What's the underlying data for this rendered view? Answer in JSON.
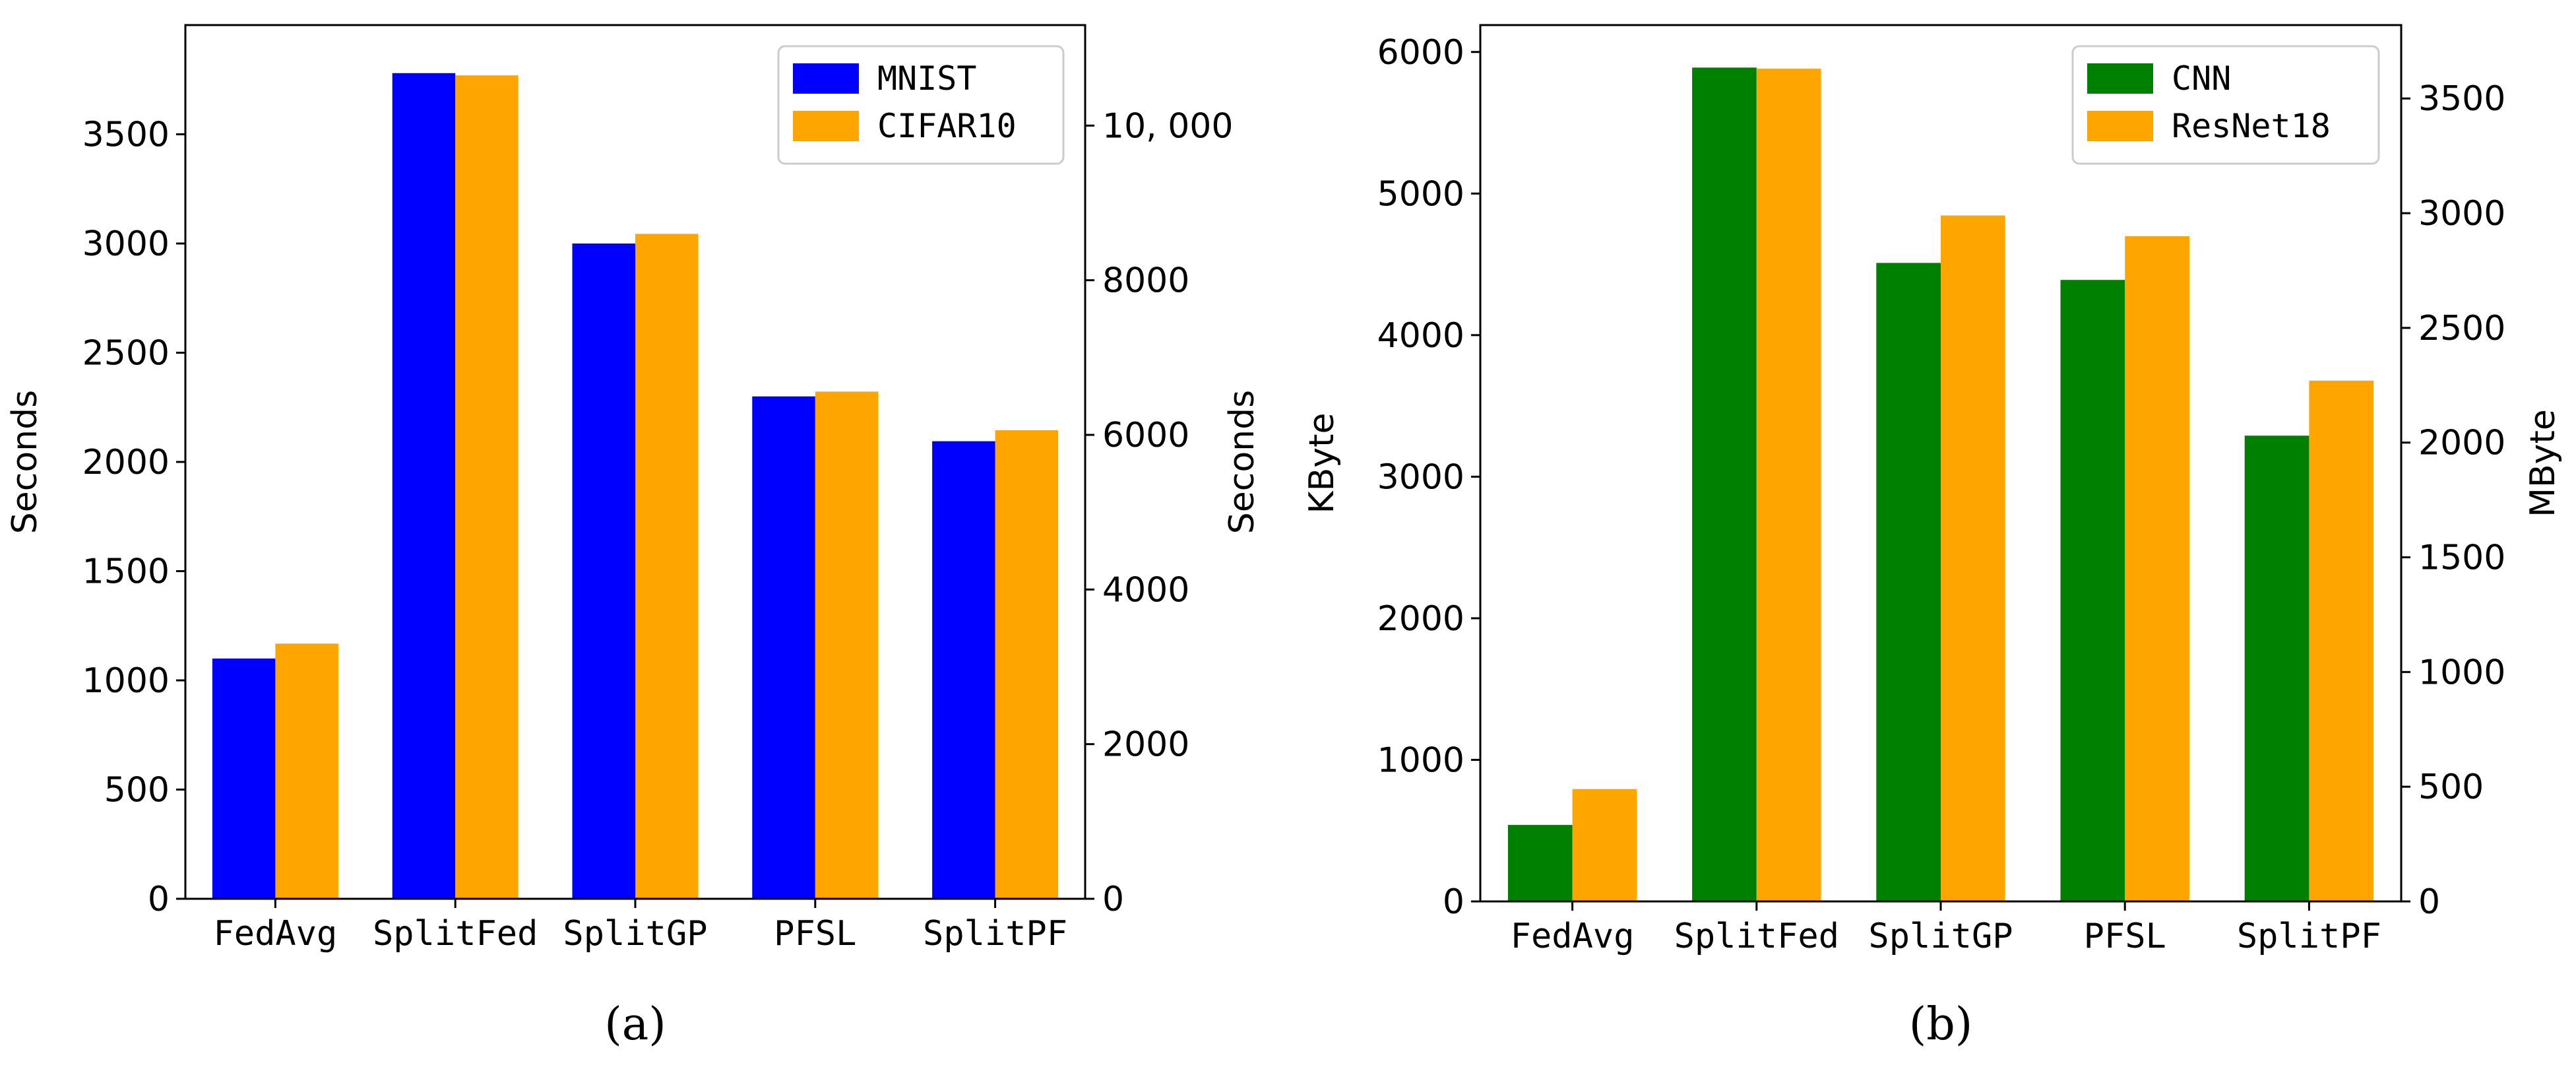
{
  "chart_data": [
    {
      "id": "a",
      "type": "bar",
      "caption": "(a)",
      "categories": [
        "FedAvg",
        "SplitFed",
        "SplitGP",
        "PFSL",
        "SplitPF"
      ],
      "series": [
        {
          "name": "MNIST",
          "axis": "left",
          "color": "#0000ff",
          "values": [
            1100,
            3780,
            3000,
            2300,
            2095
          ]
        },
        {
          "name": "CIFAR10",
          "axis": "right",
          "color": "#ffa500",
          "values": [
            3300,
            10650,
            8600,
            6560,
            6060
          ]
        }
      ],
      "ylabel_left": "Seconds",
      "ylabel_right": "Seconds",
      "ylim_left": [
        0,
        4000
      ],
      "ylim_right": [
        0,
        11300
      ],
      "yticks_left": [
        0,
        500,
        1000,
        1500,
        2000,
        2500,
        3000,
        3500
      ],
      "yticks_left_labels": [
        "0",
        "500",
        "1000",
        "1500",
        "2000",
        "2500",
        "3000",
        "3500"
      ],
      "yticks_right": [
        0,
        2000,
        4000,
        6000,
        8000,
        10000
      ],
      "yticks_right_labels": [
        "0",
        "2000",
        "4000",
        "6000",
        "8000",
        "10, 000"
      ],
      "legend_position": "top-right"
    },
    {
      "id": "b",
      "type": "bar",
      "caption": "(b)",
      "categories": [
        "FedAvg",
        "SplitFed",
        "SplitGP",
        "PFSL",
        "SplitPF"
      ],
      "series": [
        {
          "name": "CNN",
          "axis": "left",
          "color": "#008000",
          "values": [
            540,
            5890,
            4510,
            4390,
            3290
          ]
        },
        {
          "name": "ResNet18",
          "axis": "right",
          "color": "#ffa500",
          "values": [
            490,
            3630,
            2990,
            2900,
            2270
          ]
        }
      ],
      "ylabel_left": "KByte",
      "ylabel_right": "MByte",
      "ylim_left": [
        0,
        6190
      ],
      "ylim_right": [
        0,
        3820
      ],
      "yticks_left": [
        0,
        1000,
        2000,
        3000,
        4000,
        5000,
        6000
      ],
      "yticks_left_labels": [
        "0",
        "1000",
        "2000",
        "3000",
        "4000",
        "5000",
        "6000"
      ],
      "yticks_right": [
        0,
        500,
        1000,
        1500,
        2000,
        2500,
        3000,
        3500
      ],
      "yticks_right_labels": [
        "0",
        "500",
        "1000",
        "1500",
        "2000",
        "2500",
        "3000",
        "3500"
      ],
      "legend_position": "top-right"
    }
  ]
}
